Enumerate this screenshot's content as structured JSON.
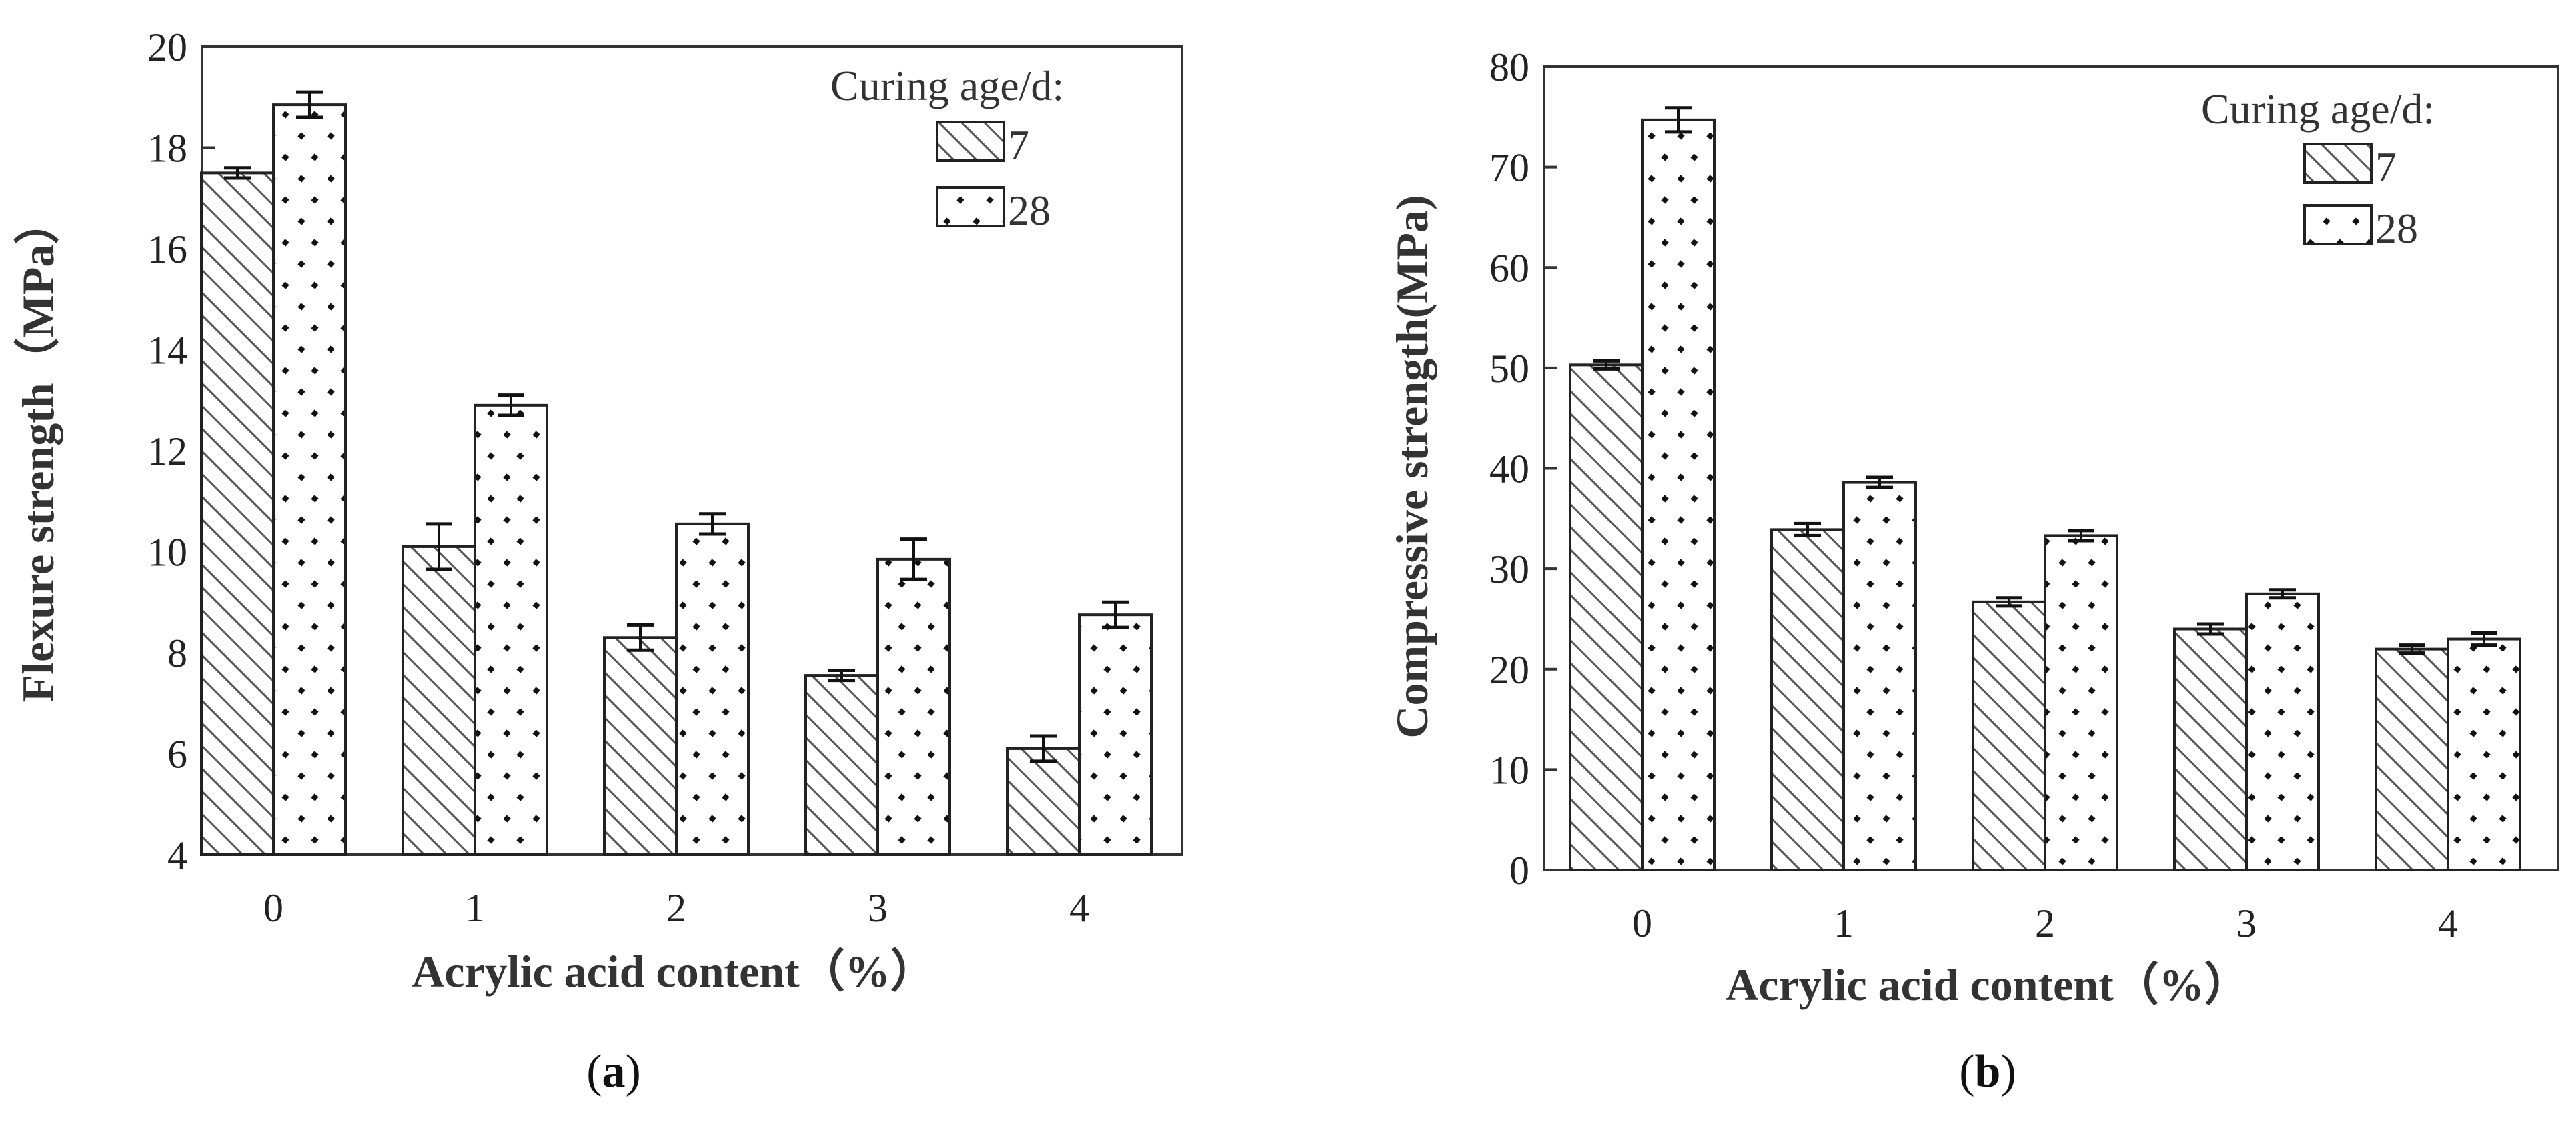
{
  "chart_data": [
    {
      "panel": "a",
      "type": "bar",
      "ylabel": "Flexure strength（MPa）",
      "xlabel": "Acrylic acid content（%）",
      "categories": [
        "0",
        "1",
        "2",
        "3",
        "4"
      ],
      "ylim": [
        4,
        20
      ],
      "yticks": [
        4,
        6,
        8,
        10,
        12,
        14,
        16,
        18,
        20
      ],
      "legend_title": "Curing age/d:",
      "series": [
        {
          "name": "7",
          "pattern": "hatch",
          "values": [
            17.5,
            10.1,
            8.3,
            7.55,
            6.1
          ],
          "errors": [
            0.1,
            0.45,
            0.25,
            0.1,
            0.25
          ]
        },
        {
          "name": "28",
          "pattern": "dots",
          "values": [
            18.85,
            12.9,
            10.55,
            9.85,
            8.75
          ],
          "errors": [
            0.25,
            0.2,
            0.2,
            0.4,
            0.25
          ]
        }
      ],
      "caption_open": "(",
      "caption_letter": "a",
      "caption_close": ")"
    },
    {
      "panel": "b",
      "type": "bar",
      "ylabel": "Compressive strength(MPa)",
      "xlabel": "Acrylic acid content（%）",
      "categories": [
        "0",
        "1",
        "2",
        "3",
        "4"
      ],
      "ylim": [
        0,
        80
      ],
      "yticks": [
        0,
        10,
        20,
        30,
        40,
        50,
        60,
        70,
        80
      ],
      "legend_title": "Curing age/d:",
      "series": [
        {
          "name": "7",
          "pattern": "hatch",
          "values": [
            50.3,
            33.9,
            26.7,
            24.0,
            22.0
          ],
          "errors": [
            0.4,
            0.6,
            0.4,
            0.5,
            0.4
          ]
        },
        {
          "name": "28",
          "pattern": "dots",
          "values": [
            74.7,
            38.6,
            33.3,
            27.5,
            23.0
          ],
          "errors": [
            1.2,
            0.5,
            0.5,
            0.4,
            0.6
          ]
        }
      ],
      "caption_open": "(",
      "caption_letter": "b",
      "caption_close": ")"
    }
  ]
}
